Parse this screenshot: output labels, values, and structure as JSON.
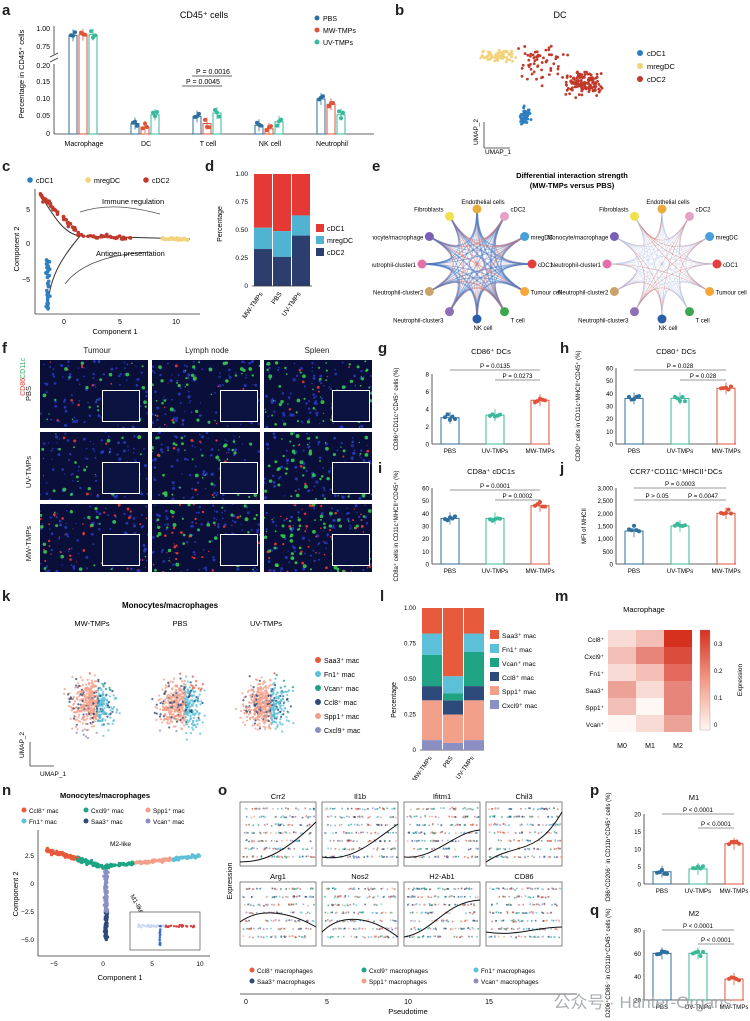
{
  "panel_letters": [
    "a",
    "b",
    "c",
    "d",
    "e",
    "f",
    "g",
    "h",
    "i",
    "j",
    "k",
    "l",
    "m",
    "n",
    "o",
    "p",
    "q"
  ],
  "a": {
    "title": "CD45⁺ cells",
    "ylabel": "Percentage in CD45⁺ cells",
    "categories": [
      "Macrophage",
      "DC",
      "T cell",
      "NK cell",
      "Neutrophil"
    ],
    "legend": [
      "PBS",
      "MW-TMPs",
      "UV-TMPs"
    ],
    "p1": "P = 0.0016",
    "p2": "P = 0.0045",
    "ytop": [
      "1.00",
      "0.75"
    ],
    "ybottom": [
      "0.20",
      "0.15",
      "0.10",
      "0.05",
      "0"
    ]
  },
  "b": {
    "title": "DC",
    "legend": [
      "cDC1",
      "mregDC",
      "cDC2"
    ],
    "xlabel": "UMAP_1",
    "ylabel": "UMAP_2"
  },
  "c": {
    "legend": [
      "cDC1",
      "mregDC",
      "cDC2"
    ],
    "ann1": "Immune regulation",
    "ann2": "Antigen presentation",
    "xlabel": "Component 1",
    "ylabel": "Component 2",
    "xticks": [
      "0",
      "5",
      "10"
    ],
    "yticks": [
      "5",
      "0",
      "−5"
    ]
  },
  "d": {
    "ylabel": "Percentage",
    "categories": [
      "MW-TMPs",
      "PBS",
      "UV-TMPs"
    ],
    "legend": [
      "cDC1",
      "mregDC",
      "cDC2"
    ],
    "yticks": [
      "1.00",
      "0.75",
      "0.50",
      "0.25",
      "0"
    ]
  },
  "e": {
    "title": "Differential interaction strength",
    "subtitle": "(MW-TMPs versus PBS)",
    "nodes": [
      "Endothelial cells",
      "cDC2",
      "mregDC",
      "cDC1",
      "Tumour cell",
      "T cell",
      "NK cell",
      "Neutrophil-cluster3",
      "Neutrophil-cluster2",
      "Neutrophil-cluster1",
      "Monocyte/macrophage",
      "Fibroblasts"
    ]
  },
  "f": {
    "columns": [
      "Tumour",
      "Lymph node",
      "Spleen"
    ],
    "rows": [
      "PBS",
      "UV-TMPs",
      "MW-TMPs"
    ],
    "stain1": "CD11c",
    "stain2": "CD86"
  },
  "g": {
    "title": "CD86⁺ DCs",
    "ylabel": "CD86⁺CD11c⁺CD45⁺ cells (%)",
    "categories": [
      "PBS",
      "UV-TMPs",
      "MW-TMPs"
    ],
    "p1": "P = 0.0135",
    "p2": "P = 0.0273",
    "yticks": [
      "8",
      "6",
      "4",
      "2",
      "0"
    ]
  },
  "h": {
    "title": "CD80⁺ DCs",
    "ylabel": "CD80⁺ cells in CD11c⁺MHCII⁺CD45⁺ (%)",
    "categories": [
      "PBS",
      "UV-TMPs",
      "MW-TMPs"
    ],
    "p1": "P = 0.028",
    "p2": "P = 0.028",
    "yticks": [
      "60",
      "50",
      "40",
      "30",
      "20",
      "10",
      "0"
    ]
  },
  "i": {
    "title": "CD8a⁺ cDC1s",
    "ylabel": "CD8a⁺ cells in CD11c⁺MHCII⁺CD45⁺ (%)",
    "categories": [
      "PBS",
      "UV-TMPs",
      "MW-TMPs"
    ],
    "p1": "P = 0.0001",
    "p2": "P = 0.0002",
    "yticks": [
      "60",
      "50",
      "40",
      "30",
      "20",
      "10",
      "0"
    ]
  },
  "j": {
    "title": "CCR7⁺CD11C⁺MHCII⁺DCs",
    "ylabel": "MFI of MHCII",
    "categories": [
      "PBS",
      "UV-TMPs",
      "MW-TMPs"
    ],
    "p1": "P = 0.0003",
    "p2": "P > 0.05",
    "p3": "P = 0.0047",
    "yticks": [
      "3,000",
      "2,500",
      "2,000",
      "1,500",
      "1,000",
      "500",
      "0"
    ]
  },
  "k": {
    "title": "Monocytes/macrophages",
    "groups": [
      "MW-TMPs",
      "PBS",
      "UV-TMPs"
    ],
    "legend": [
      "Saa3⁺ mac",
      "Fn1⁺ mac",
      "Vcan⁺ mac",
      "Ccl8⁺ mac",
      "Spp1⁺ mac",
      "Cxcl9⁺ mac"
    ],
    "xlabel": "UMAP_1",
    "ylabel": "UMAP_2"
  },
  "l": {
    "ylabel": "Percentage",
    "categories": [
      "MW-TMPs",
      "PBS",
      "UV-TMPs"
    ],
    "legend": [
      "Saa3⁺ mac",
      "Fn1⁺ mac",
      "Vcan⁺ mac",
      "Ccl8⁺ mac",
      "Spp1⁺ mac",
      "Cxcl9⁺ mac"
    ],
    "yticks": [
      "1.00",
      "0.75",
      "0.50",
      "0.25",
      "0"
    ]
  },
  "m": {
    "title": "Macrophage",
    "rows": [
      "Ccl8⁺",
      "Cxcl9⁺",
      "Fn1⁺",
      "Saa3⁺",
      "Spp1⁺",
      "Vcan⁺"
    ],
    "cols": [
      "M0",
      "M1",
      "M2"
    ],
    "legend_label": "Expression",
    "legend_ticks": [
      "0.3",
      "0.2",
      "0.1",
      "0"
    ]
  },
  "n": {
    "title": "Monocytes/macrophages",
    "legend": [
      "Ccl8⁺ mac",
      "Cxcl9⁺ mac",
      "Spp1⁺ mac",
      "Fn1⁺ mac",
      "Saa3⁺ mac",
      "Vcan⁺ mac"
    ],
    "ann1": "M2-like",
    "ann2": "M1-like",
    "xlabel": "Component 1",
    "ylabel": "Component 2",
    "xticks": [
      "−5",
      "0",
      "5",
      "10"
    ],
    "yticks": [
      "2.5",
      "0",
      "−2.5",
      "−5.0"
    ]
  },
  "o": {
    "genes": [
      "Crr2",
      "Il1b",
      "Ifitm1",
      "Chil3",
      "Arg1",
      "Nos2",
      "H2-Ab1",
      "CD86"
    ],
    "ylabel": "Expression",
    "xlabel": "Pseudotime",
    "xticks": [
      "0",
      "5",
      "10",
      "15"
    ],
    "legend": [
      "Ccl8⁺ macrophages",
      "Cxcl9⁺ macrophages",
      "Fn1⁺ macrophages",
      "Saa3⁺ macrophages",
      "Spp1⁺ macrophages",
      "Vcan⁺ macrophages"
    ]
  },
  "p": {
    "title": "M1",
    "ylabel": "CD86⁺CD206⁻ in CD11b⁺CD45⁺ cells (%)",
    "categories": [
      "PBS",
      "UV-TMPs",
      "MW-TMPs"
    ],
    "p1": "P < 0.0001",
    "p2": "P < 0.0001",
    "yticks": [
      "20",
      "15",
      "10",
      "5",
      "0"
    ]
  },
  "q": {
    "title": "M2",
    "ylabel": "CD206⁺CD86⁻ in CD11b⁺CD45⁺ cells (%)",
    "categories": [
      "PBS",
      "UV-TMPs",
      "MW-TMPs"
    ],
    "p1": "P < 0.0001",
    "p2": "P < 0.0001",
    "yticks": [
      "80",
      "60",
      "40",
      "20"
    ]
  },
  "watermark": "公众号 · Hunter-Organs",
  "chart_data": [
    {
      "id": "a",
      "type": "bar",
      "categories": [
        "Macrophage",
        "DC",
        "T cell",
        "NK cell",
        "Neutrophil"
      ],
      "series": [
        {
          "name": "PBS",
          "values": [
            0.87,
            0.03,
            0.05,
            0.025,
            0.1
          ]
        },
        {
          "name": "MW-TMPs",
          "values": [
            0.88,
            0.02,
            0.03,
            0.015,
            0.085
          ]
        },
        {
          "name": "UV-TMPs",
          "values": [
            0.88,
            0.055,
            0.06,
            0.035,
            0.055
          ]
        }
      ]
    },
    {
      "id": "d",
      "type": "bar",
      "stacked": true,
      "categories": [
        "MW-TMPs",
        "PBS",
        "UV-TMPs"
      ],
      "series": [
        {
          "name": "cDC1",
          "values": [
            0.48,
            0.51,
            0.37
          ]
        },
        {
          "name": "mregDC",
          "values": [
            0.19,
            0.23,
            0.18
          ]
        },
        {
          "name": "cDC2",
          "values": [
            0.33,
            0.26,
            0.45
          ]
        }
      ]
    },
    {
      "id": "g",
      "type": "bar",
      "categories": [
        "PBS",
        "UV-TMPs",
        "MW-TMPs"
      ],
      "values": [
        3.0,
        3.3,
        5.0
      ],
      "ylim": [
        0,
        8
      ]
    },
    {
      "id": "h",
      "type": "bar",
      "categories": [
        "PBS",
        "UV-TMPs",
        "MW-TMPs"
      ],
      "values": [
        36,
        36,
        44
      ],
      "ylim": [
        0,
        60
      ]
    },
    {
      "id": "i",
      "type": "bar",
      "categories": [
        "PBS",
        "UV-TMPs",
        "MW-TMPs"
      ],
      "values": [
        36,
        36,
        46
      ],
      "ylim": [
        0,
        60
      ]
    },
    {
      "id": "j",
      "type": "bar",
      "categories": [
        "PBS",
        "UV-TMPs",
        "MW-TMPs"
      ],
      "values": [
        1300,
        1500,
        2000
      ],
      "ylim": [
        0,
        3000
      ]
    },
    {
      "id": "l",
      "type": "bar",
      "stacked": true,
      "categories": [
        "MW-TMPs",
        "PBS",
        "UV-TMPs"
      ],
      "series": [
        {
          "name": "Cxcl9⁺ mac",
          "values": [
            0.07,
            0.05,
            0.07
          ]
        },
        {
          "name": "Spp1⁺ mac",
          "values": [
            0.28,
            0.2,
            0.28
          ]
        },
        {
          "name": "Ccl8⁺ mac",
          "values": [
            0.1,
            0.1,
            0.1
          ]
        },
        {
          "name": "Vcan⁺ mac",
          "values": [
            0.22,
            0.05,
            0.24
          ]
        },
        {
          "name": "Fn1⁺ mac",
          "values": [
            0.15,
            0.12,
            0.13
          ]
        },
        {
          "name": "Saa3⁺ mac",
          "values": [
            0.18,
            0.48,
            0.18
          ]
        }
      ]
    },
    {
      "id": "m",
      "type": "heatmap",
      "rows": [
        "Ccl8⁺",
        "Cxcl9⁺",
        "Fn1⁺",
        "Saa3⁺",
        "Spp1⁺",
        "Vcan⁺"
      ],
      "cols": [
        "M0",
        "M1",
        "M2"
      ],
      "values": [
        [
          0.05,
          0.1,
          0.35
        ],
        [
          0.1,
          0.2,
          0.3
        ],
        [
          0.05,
          0.1,
          0.25
        ],
        [
          0.15,
          0.05,
          0.2
        ],
        [
          0.1,
          0.0,
          0.2
        ],
        [
          0.0,
          0.05,
          0.15
        ]
      ]
    },
    {
      "id": "p",
      "type": "bar",
      "categories": [
        "PBS",
        "UV-TMPs",
        "MW-TMPs"
      ],
      "values": [
        3.5,
        4.3,
        11.5
      ],
      "ylim": [
        0,
        20
      ]
    },
    {
      "id": "q",
      "type": "bar",
      "categories": [
        "PBS",
        "UV-TMPs",
        "MW-TMPs"
      ],
      "values": [
        60,
        60,
        38
      ],
      "ylim": [
        20,
        80
      ]
    }
  ],
  "colors": {
    "pbs": "#2e6f9e",
    "mw": "#e0533b",
    "uv": "#3ab99a",
    "cdc1": "#2e7fc2",
    "mregdc": "#f2d27a",
    "cdc2": "#c0392b"
  }
}
